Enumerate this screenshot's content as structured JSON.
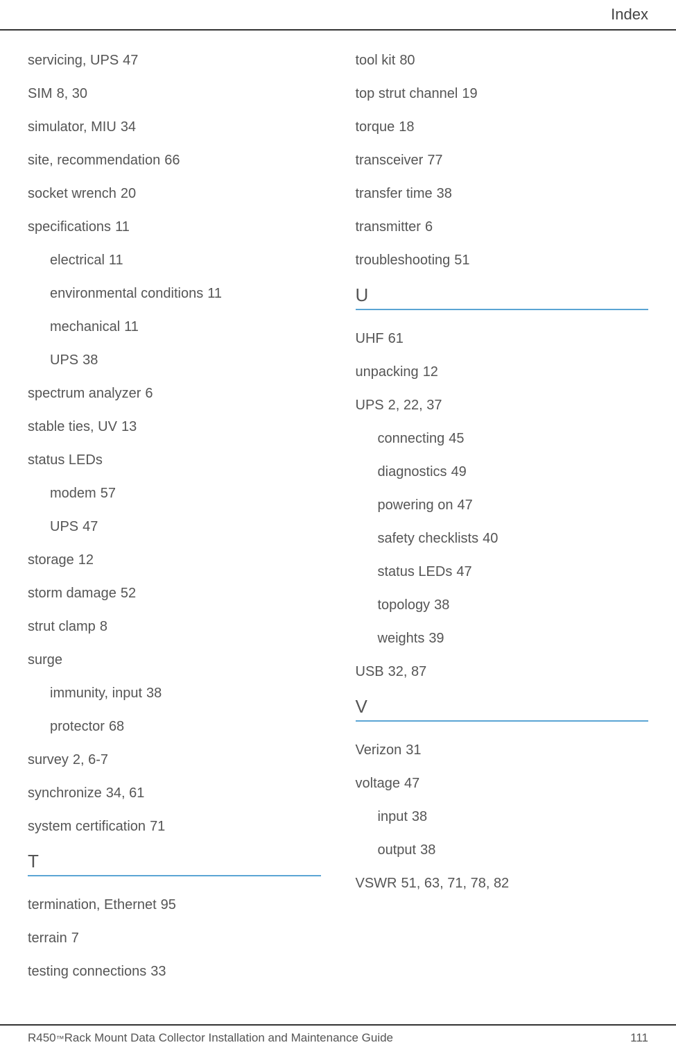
{
  "header": {
    "title": "Index"
  },
  "colors": {
    "text": "#555555",
    "rule": "#333333",
    "accent": "#5aa5d4",
    "background": "#ffffff"
  },
  "typography": {
    "body_fontsize": 20,
    "header_fontsize": 22,
    "letter_fontsize": 26,
    "footer_fontsize": 17,
    "font_family": "Segoe UI"
  },
  "left_column": {
    "entries": [
      {
        "term": "servicing, UPS",
        "pages": "47",
        "sub": false
      },
      {
        "term": "SIM",
        "pages": "8, 30",
        "sub": false
      },
      {
        "term": "simulator, MIU",
        "pages": "34",
        "sub": false
      },
      {
        "term": "site, recommendation",
        "pages": "66",
        "sub": false
      },
      {
        "term": "socket wrench",
        "pages": "20",
        "sub": false
      },
      {
        "term": "specifications",
        "pages": "11",
        "sub": false
      },
      {
        "term": "electrical",
        "pages": "11",
        "sub": true
      },
      {
        "term": "environmental conditions",
        "pages": "11",
        "sub": true
      },
      {
        "term": "mechanical",
        "pages": "11",
        "sub": true
      },
      {
        "term": "UPS",
        "pages": "38",
        "sub": true
      },
      {
        "term": "spectrum analyzer",
        "pages": "6",
        "sub": false
      },
      {
        "term": "stable ties, UV",
        "pages": "13",
        "sub": false
      },
      {
        "term": "status LEDs",
        "pages": "",
        "sub": false
      },
      {
        "term": "modem",
        "pages": "57",
        "sub": true
      },
      {
        "term": "UPS",
        "pages": "47",
        "sub": true
      },
      {
        "term": "storage",
        "pages": "12",
        "sub": false
      },
      {
        "term": "storm damage",
        "pages": "52",
        "sub": false
      },
      {
        "term": "strut clamp",
        "pages": "8",
        "sub": false
      },
      {
        "term": "surge",
        "pages": "",
        "sub": false
      },
      {
        "term": "immunity, input",
        "pages": "38",
        "sub": true
      },
      {
        "term": "protector",
        "pages": "68",
        "sub": true
      },
      {
        "term": "survey",
        "pages": "2, 6-7",
        "sub": false
      },
      {
        "term": "synchronize",
        "pages": "34, 61",
        "sub": false
      },
      {
        "term": "system certification",
        "pages": "71",
        "sub": false
      }
    ],
    "section_t": {
      "letter": "T",
      "entries": [
        {
          "term": "termination, Ethernet",
          "pages": "95",
          "sub": false
        },
        {
          "term": "terrain",
          "pages": "7",
          "sub": false
        },
        {
          "term": "testing connections",
          "pages": "33",
          "sub": false
        }
      ]
    }
  },
  "right_column": {
    "entries_cont": [
      {
        "term": "tool kit",
        "pages": "80",
        "sub": false
      },
      {
        "term": "top strut channel",
        "pages": "19",
        "sub": false
      },
      {
        "term": "torque",
        "pages": "18",
        "sub": false
      },
      {
        "term": "transceiver",
        "pages": "77",
        "sub": false
      },
      {
        "term": "transfer time",
        "pages": "38",
        "sub": false
      },
      {
        "term": "transmitter",
        "pages": "6",
        "sub": false
      },
      {
        "term": "troubleshooting",
        "pages": "51",
        "sub": false
      }
    ],
    "section_u": {
      "letter": "U",
      "entries": [
        {
          "term": "UHF",
          "pages": "61",
          "sub": false
        },
        {
          "term": "unpacking",
          "pages": "12",
          "sub": false
        },
        {
          "term": "UPS",
          "pages": "2, 22, 37",
          "sub": false
        },
        {
          "term": "connecting",
          "pages": "45",
          "sub": true
        },
        {
          "term": "diagnostics",
          "pages": "49",
          "sub": true
        },
        {
          "term": "powering on",
          "pages": "47",
          "sub": true
        },
        {
          "term": "safety checklists",
          "pages": "40",
          "sub": true
        },
        {
          "term": "status LEDs",
          "pages": "47",
          "sub": true
        },
        {
          "term": "topology",
          "pages": "38",
          "sub": true
        },
        {
          "term": "weights",
          "pages": "39",
          "sub": true
        },
        {
          "term": "USB",
          "pages": "32, 87",
          "sub": false
        }
      ]
    },
    "section_v": {
      "letter": "V",
      "entries": [
        {
          "term": "Verizon",
          "pages": "31",
          "sub": false
        },
        {
          "term": "voltage",
          "pages": "47",
          "sub": false
        },
        {
          "term": "input",
          "pages": "38",
          "sub": true
        },
        {
          "term": "output",
          "pages": "38",
          "sub": true
        },
        {
          "term": "VSWR",
          "pages": "51, 63, 71, 78, 82",
          "sub": false
        }
      ]
    }
  },
  "footer": {
    "product": "R450",
    "tm": "™",
    "title_rest": " Rack Mount Data Collector Installation and Maintenance Guide",
    "page": "111"
  }
}
